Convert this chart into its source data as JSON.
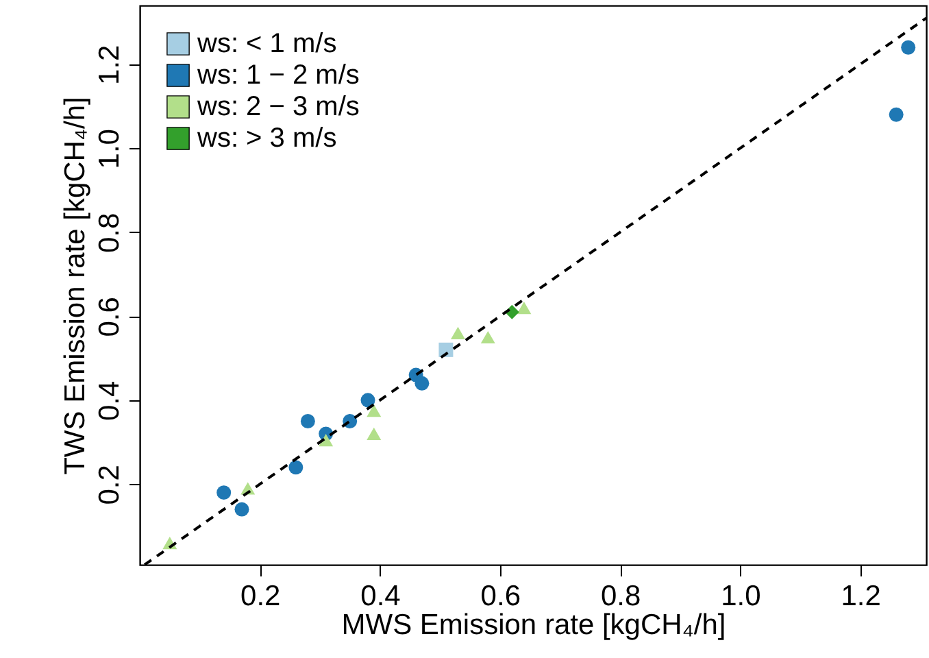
{
  "chart_data": {
    "type": "scatter",
    "xlabel": "MWS Emission rate [kgCH₄/h]",
    "ylabel": "TWS Emission rate [kgCH₄/h]",
    "xlim": [
      0.0,
      1.31
    ],
    "ylim": [
      0.008,
      1.34
    ],
    "xticks": [
      0.2,
      0.4,
      0.6,
      0.8,
      {
        "value": 1,
        "label": "1.0"
      },
      1.2
    ],
    "yticks": [
      0.2,
      0.4,
      0.6,
      0.8,
      {
        "value": 1,
        "label": "1.0"
      },
      1.2
    ],
    "grid": false,
    "legend": "top left",
    "series": [
      {
        "name": "ws: < 1 m/s",
        "color": "#a6cee3",
        "marker": "square",
        "x": [
          0.51
        ],
        "values": [
          0.52
        ]
      },
      {
        "name": "ws: 1 − 2 m/s",
        "color": "#1f78b4",
        "marker": "circle",
        "x": [
          0.14,
          0.17,
          0.26,
          0.28,
          0.31,
          0.35,
          0.38,
          0.46,
          0.47,
          1.26,
          1.28
        ],
        "values": [
          0.18,
          0.14,
          0.24,
          0.35,
          0.32,
          0.35,
          0.4,
          0.46,
          0.44,
          1.08,
          1.24
        ]
      },
      {
        "name": "ws: 2 − 3 m/s",
        "color": "#b2df8a",
        "marker": "triangle",
        "x": [
          0.05,
          0.18,
          0.31,
          0.39,
          0.39,
          0.53,
          0.58,
          0.64
        ],
        "values": [
          0.06,
          0.19,
          0.305,
          0.375,
          0.32,
          0.56,
          0.55,
          0.62
        ]
      },
      {
        "name": "ws: > 3 m/s",
        "color": "#33a02c",
        "marker": "diamond",
        "x": [
          0.62
        ],
        "values": [
          0.61
        ]
      },
      {
        "type": "line",
        "color": "#000000",
        "line_style": "dashed",
        "x": [
          0.008,
          1.31
        ],
        "values": [
          0.008,
          1.31
        ]
      }
    ]
  }
}
